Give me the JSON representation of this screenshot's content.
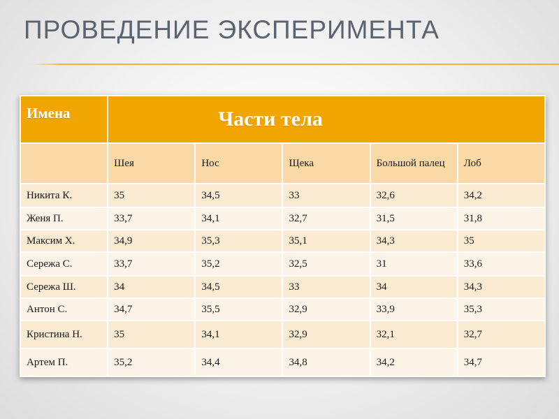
{
  "slide": {
    "title": "ПРОВЕДЕНИЕ ЭКСПЕРИМЕНТА"
  },
  "table": {
    "header_names": "Имена",
    "header_parts": "Части тела",
    "columns": [
      "Шея",
      "Нос",
      "Щека",
      "Большой палец",
      "Лоб"
    ],
    "rows": [
      {
        "name": "Никита К.",
        "values": [
          "35",
          "34,5",
          "33",
          "32,6",
          "34,2"
        ]
      },
      {
        "name": "Женя П.",
        "values": [
          "33,7",
          "34,1",
          "32,7",
          "31,5",
          "31,8"
        ]
      },
      {
        "name": "Максим Х.",
        "values": [
          "34,9",
          "35,3",
          "35,1",
          "34,3",
          "35"
        ]
      },
      {
        "name": "Сережа С.",
        "values": [
          "33,7",
          "35,2",
          "32,5",
          "31",
          "33,6"
        ]
      },
      {
        "name": "Сережа Ш.",
        "values": [
          "34",
          "34,5",
          "33",
          "34",
          "34,3"
        ]
      },
      {
        "name": "Антон С.",
        "values": [
          "34,7",
          "35,5",
          "32,9",
          "33,9",
          "35,3"
        ]
      },
      {
        "name": "Кристина Н.",
        "values": [
          "35",
          "34,1",
          "32,9",
          "32,1",
          "32,7"
        ]
      },
      {
        "name": "Артем П.",
        "values": [
          "35,2",
          "34,4",
          "34,8",
          "34,2",
          "34,7"
        ]
      }
    ]
  },
  "colors": {
    "header_orange": "#f0a500",
    "subheader": "#fad9a6",
    "row_dark": "#fcebd3",
    "row_light": "#fdf4e8",
    "title_text": "#5a6370",
    "title_rule": "#f3b230"
  }
}
